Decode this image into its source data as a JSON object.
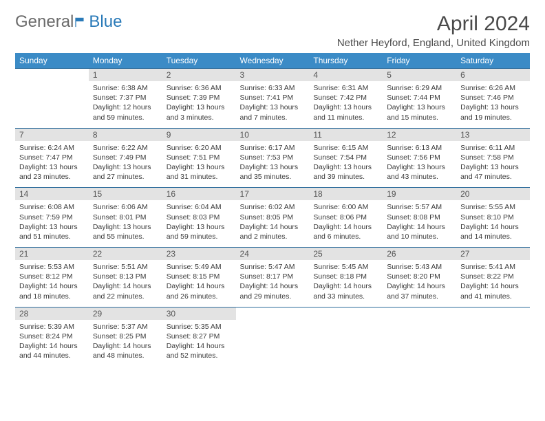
{
  "logo": {
    "text1": "General",
    "text2": "Blue"
  },
  "title": "April 2024",
  "location": "Nether Heyford, England, United Kingdom",
  "colors": {
    "header_bg": "#3b8bc6",
    "header_text": "#ffffff",
    "daynum_bg": "#e3e3e3",
    "border": "#2a6a9a",
    "logo_blue": "#2a7ab8"
  },
  "weekdays": [
    "Sunday",
    "Monday",
    "Tuesday",
    "Wednesday",
    "Thursday",
    "Friday",
    "Saturday"
  ],
  "weeks": [
    [
      null,
      {
        "n": "1",
        "sr": "6:38 AM",
        "ss": "7:37 PM",
        "dl": "12 hours and 59 minutes."
      },
      {
        "n": "2",
        "sr": "6:36 AM",
        "ss": "7:39 PM",
        "dl": "13 hours and 3 minutes."
      },
      {
        "n": "3",
        "sr": "6:33 AM",
        "ss": "7:41 PM",
        "dl": "13 hours and 7 minutes."
      },
      {
        "n": "4",
        "sr": "6:31 AM",
        "ss": "7:42 PM",
        "dl": "13 hours and 11 minutes."
      },
      {
        "n": "5",
        "sr": "6:29 AM",
        "ss": "7:44 PM",
        "dl": "13 hours and 15 minutes."
      },
      {
        "n": "6",
        "sr": "6:26 AM",
        "ss": "7:46 PM",
        "dl": "13 hours and 19 minutes."
      }
    ],
    [
      {
        "n": "7",
        "sr": "6:24 AM",
        "ss": "7:47 PM",
        "dl": "13 hours and 23 minutes."
      },
      {
        "n": "8",
        "sr": "6:22 AM",
        "ss": "7:49 PM",
        "dl": "13 hours and 27 minutes."
      },
      {
        "n": "9",
        "sr": "6:20 AM",
        "ss": "7:51 PM",
        "dl": "13 hours and 31 minutes."
      },
      {
        "n": "10",
        "sr": "6:17 AM",
        "ss": "7:53 PM",
        "dl": "13 hours and 35 minutes."
      },
      {
        "n": "11",
        "sr": "6:15 AM",
        "ss": "7:54 PM",
        "dl": "13 hours and 39 minutes."
      },
      {
        "n": "12",
        "sr": "6:13 AM",
        "ss": "7:56 PM",
        "dl": "13 hours and 43 minutes."
      },
      {
        "n": "13",
        "sr": "6:11 AM",
        "ss": "7:58 PM",
        "dl": "13 hours and 47 minutes."
      }
    ],
    [
      {
        "n": "14",
        "sr": "6:08 AM",
        "ss": "7:59 PM",
        "dl": "13 hours and 51 minutes."
      },
      {
        "n": "15",
        "sr": "6:06 AM",
        "ss": "8:01 PM",
        "dl": "13 hours and 55 minutes."
      },
      {
        "n": "16",
        "sr": "6:04 AM",
        "ss": "8:03 PM",
        "dl": "13 hours and 59 minutes."
      },
      {
        "n": "17",
        "sr": "6:02 AM",
        "ss": "8:05 PM",
        "dl": "14 hours and 2 minutes."
      },
      {
        "n": "18",
        "sr": "6:00 AM",
        "ss": "8:06 PM",
        "dl": "14 hours and 6 minutes."
      },
      {
        "n": "19",
        "sr": "5:57 AM",
        "ss": "8:08 PM",
        "dl": "14 hours and 10 minutes."
      },
      {
        "n": "20",
        "sr": "5:55 AM",
        "ss": "8:10 PM",
        "dl": "14 hours and 14 minutes."
      }
    ],
    [
      {
        "n": "21",
        "sr": "5:53 AM",
        "ss": "8:12 PM",
        "dl": "14 hours and 18 minutes."
      },
      {
        "n": "22",
        "sr": "5:51 AM",
        "ss": "8:13 PM",
        "dl": "14 hours and 22 minutes."
      },
      {
        "n": "23",
        "sr": "5:49 AM",
        "ss": "8:15 PM",
        "dl": "14 hours and 26 minutes."
      },
      {
        "n": "24",
        "sr": "5:47 AM",
        "ss": "8:17 PM",
        "dl": "14 hours and 29 minutes."
      },
      {
        "n": "25",
        "sr": "5:45 AM",
        "ss": "8:18 PM",
        "dl": "14 hours and 33 minutes."
      },
      {
        "n": "26",
        "sr": "5:43 AM",
        "ss": "8:20 PM",
        "dl": "14 hours and 37 minutes."
      },
      {
        "n": "27",
        "sr": "5:41 AM",
        "ss": "8:22 PM",
        "dl": "14 hours and 41 minutes."
      }
    ],
    [
      {
        "n": "28",
        "sr": "5:39 AM",
        "ss": "8:24 PM",
        "dl": "14 hours and 44 minutes."
      },
      {
        "n": "29",
        "sr": "5:37 AM",
        "ss": "8:25 PM",
        "dl": "14 hours and 48 minutes."
      },
      {
        "n": "30",
        "sr": "5:35 AM",
        "ss": "8:27 PM",
        "dl": "14 hours and 52 minutes."
      },
      null,
      null,
      null,
      null
    ]
  ],
  "labels": {
    "sunrise": "Sunrise:",
    "sunset": "Sunset:",
    "daylight": "Daylight:"
  }
}
